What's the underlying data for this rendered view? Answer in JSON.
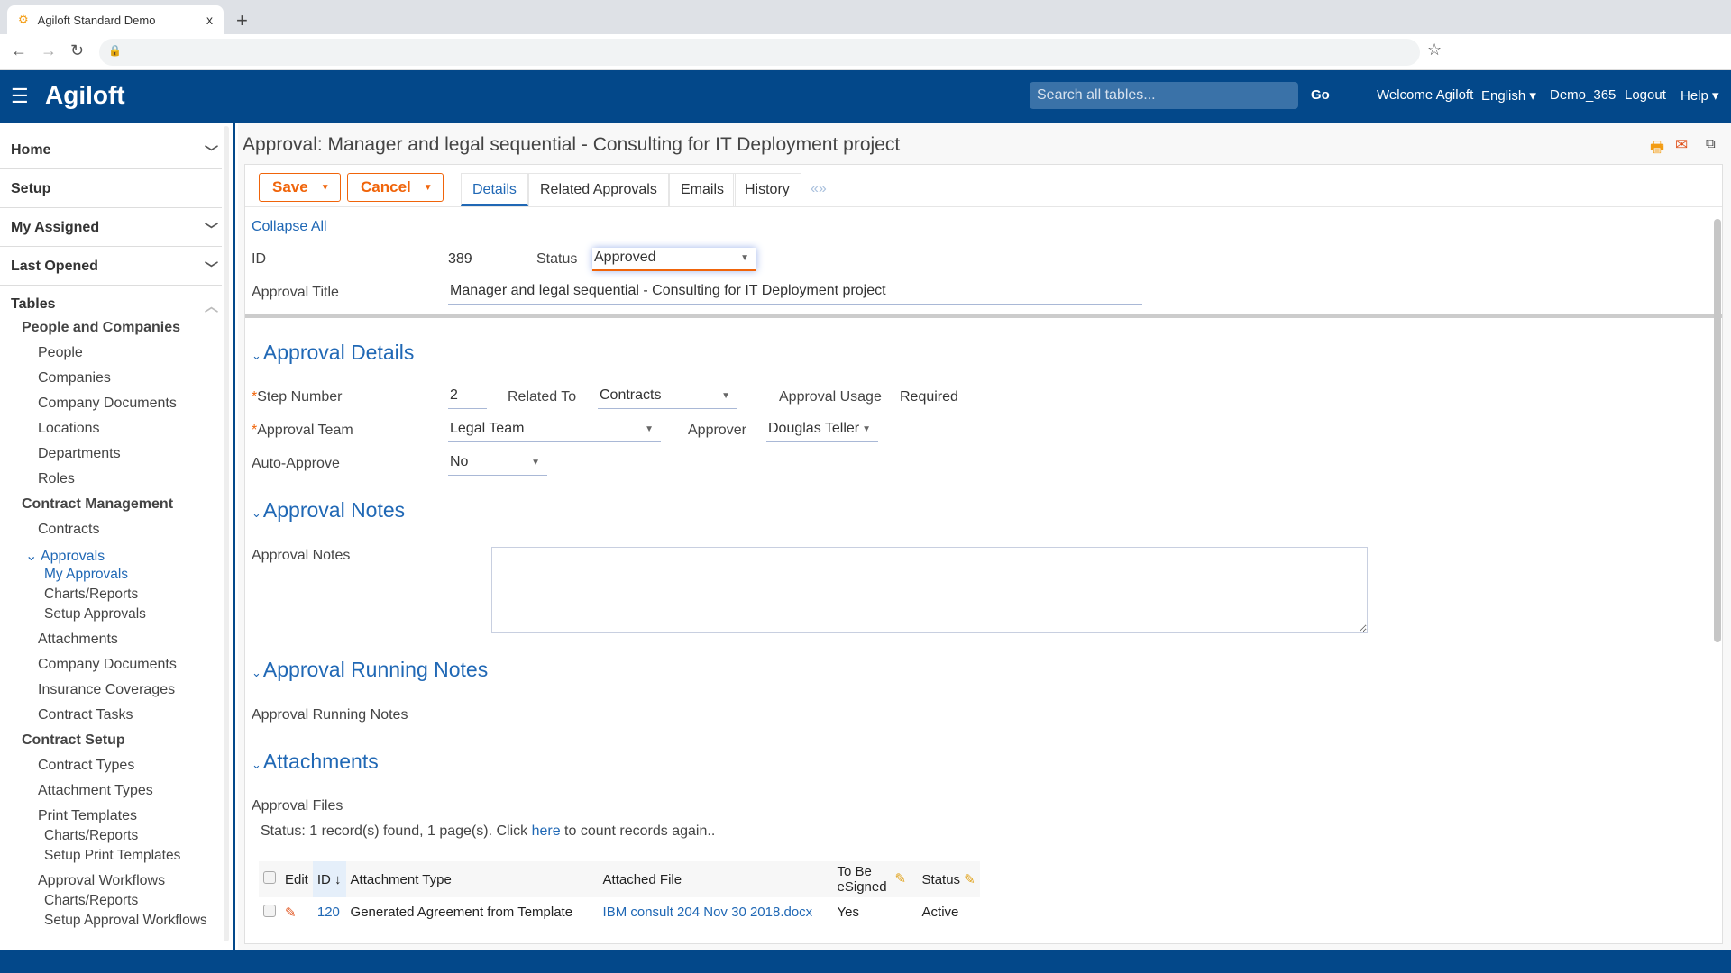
{
  "browser": {
    "tab_title": "Agiloft Standard Demo",
    "close": "x",
    "new_tab": "+"
  },
  "header": {
    "logo": "Agiloft",
    "search_placeholder": "Search all tables...",
    "go": "Go",
    "welcome": "Welcome Agiloft",
    "language": "English ▾",
    "kb": "Demo_365",
    "logout": "Logout",
    "help": "Help ▾",
    "brand_color": "#03488a"
  },
  "sidebar": {
    "top": [
      {
        "label": "Home",
        "chevron": "down"
      },
      {
        "label": "Setup"
      },
      {
        "label": "My Assigned",
        "chevron": "down"
      },
      {
        "label": "Last Opened",
        "chevron": "down"
      },
      {
        "label": "Tables",
        "chevron": "up"
      }
    ],
    "tree": [
      {
        "label": "People and Companies",
        "level": "group"
      },
      {
        "label": "People",
        "level": "item"
      },
      {
        "label": "Companies",
        "level": "item"
      },
      {
        "label": "Company Documents",
        "level": "item"
      },
      {
        "label": "Locations",
        "level": "item"
      },
      {
        "label": "Departments",
        "level": "item"
      },
      {
        "label": "Roles",
        "level": "item"
      },
      {
        "label": "Contract Management",
        "level": "group"
      },
      {
        "label": "Contracts",
        "level": "item"
      },
      {
        "label": "Approvals",
        "level": "item",
        "expanded": true,
        "active": true
      },
      {
        "label": "My Approvals",
        "level": "sub",
        "active": true
      },
      {
        "label": "Charts/Reports",
        "level": "sub"
      },
      {
        "label": "Setup Approvals",
        "level": "sub"
      },
      {
        "label": "Attachments",
        "level": "item"
      },
      {
        "label": "Company Documents",
        "level": "item"
      },
      {
        "label": "Insurance Coverages",
        "level": "item"
      },
      {
        "label": "Contract Tasks",
        "level": "item"
      },
      {
        "label": "Contract Setup",
        "level": "group"
      },
      {
        "label": "Contract Types",
        "level": "item"
      },
      {
        "label": "Attachment Types",
        "level": "item"
      },
      {
        "label": "Print Templates",
        "level": "item"
      },
      {
        "label": "Charts/Reports",
        "level": "sub"
      },
      {
        "label": "Setup Print Templates",
        "level": "sub"
      },
      {
        "label": "Approval Workflows",
        "level": "item"
      },
      {
        "label": "Charts/Reports",
        "level": "sub"
      },
      {
        "label": "Setup Approval Workflows",
        "level": "sub"
      }
    ]
  },
  "page": {
    "title": "Approval: Manager and legal sequential - Consulting for IT Deployment project",
    "save": "Save",
    "cancel": "Cancel",
    "tabs": [
      "Details",
      "Related Approvals",
      "Emails",
      "History"
    ],
    "tab_nav": "«»",
    "collapse_all": "Collapse All",
    "id_label": "ID",
    "id_value": "389",
    "status_label": "Status",
    "status_value": "Approved",
    "title_label": "Approval Title",
    "title_value": "Manager and legal sequential - Consulting for IT Deployment project",
    "sections": {
      "details": "Approval Details",
      "notes": "Approval Notes",
      "running": "Approval Running Notes",
      "attachments": "Attachments"
    },
    "fields": {
      "step_label": "Step Number",
      "step_value": "2",
      "related_label": "Related To",
      "related_value": "Contracts",
      "usage_label": "Approval Usage",
      "usage_value": "Required",
      "team_label": "Approval Team",
      "team_value": "Legal Team",
      "approver_label": "Approver",
      "approver_value": "Douglas Teller",
      "auto_label": "Auto-Approve",
      "auto_value": "No",
      "notes_label": "Approval Notes",
      "notes_value": "",
      "running_label": "Approval Running Notes",
      "files_label": "Approval Files"
    },
    "status_line": {
      "pre": "Status: 1 record(s) found, 1 page(s). Click ",
      "link": "here",
      "post": " to count records again.."
    },
    "table": {
      "headers": [
        "Edit",
        "ID ↓",
        "Attachment Type",
        "Attached File",
        "To Be eSigned",
        "Status"
      ],
      "rows": [
        {
          "id": "120",
          "type": "Generated Agreement from Template",
          "file": "IBM consult 204 Nov 30 2018.docx",
          "esigned": "Yes",
          "status": "Active"
        }
      ]
    }
  }
}
